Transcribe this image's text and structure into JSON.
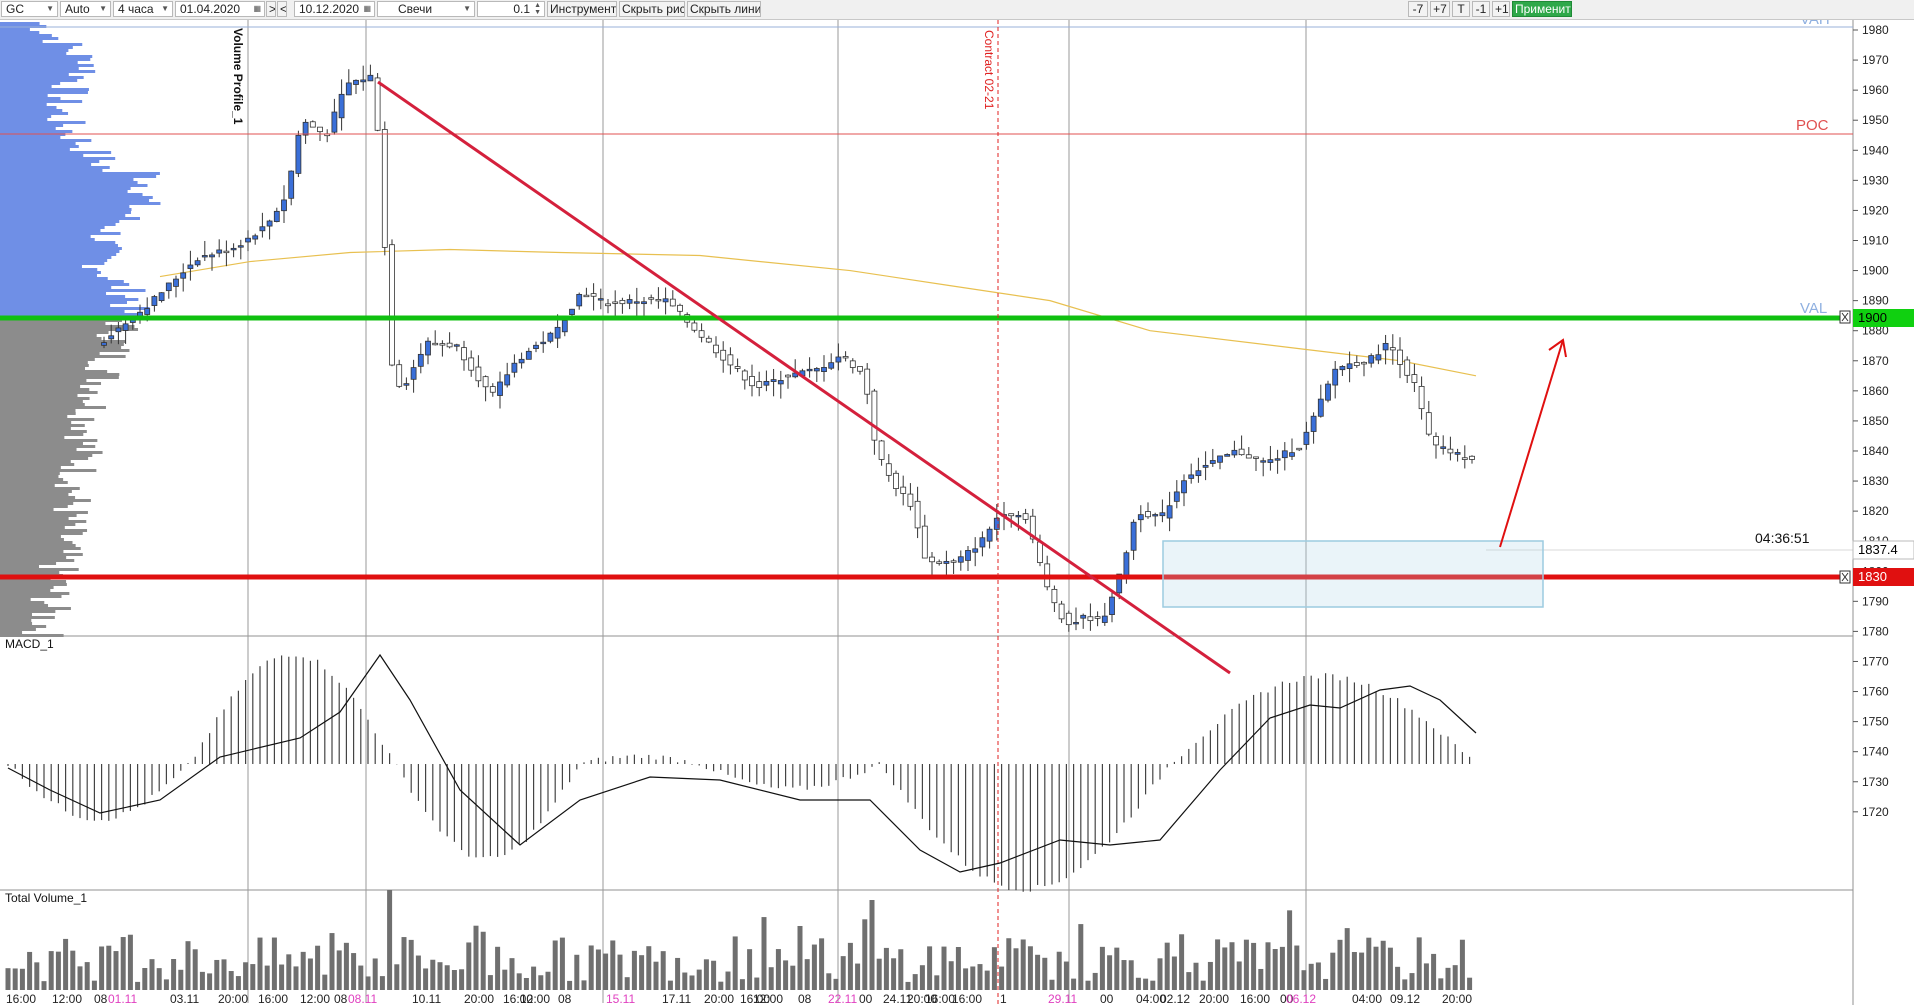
{
  "toolbar": {
    "symbol": "GC",
    "scale": "Auto",
    "timeframe": "4 часа",
    "date_from": "01.04.2020",
    "nav_next": ">",
    "nav_prev": "<",
    "date_to": "10.12.2020",
    "chart_type": "Свечи",
    "step": "0.1",
    "tools_label": "Инструменты",
    "hide_drawings_label": "Скрыть рис.",
    "hide_lines_label": "Скрыть линии",
    "minus7": "-7",
    "plus7": "+7",
    "t_label": "T",
    "minus1": "-1",
    "plus1": "+1",
    "apply_label": "Применить",
    "apply_color": "#2fa84a"
  },
  "chart": {
    "volume_profile_label": "Volume Profile_1",
    "contract_label": "Contract 02-21",
    "poc_label": "POC",
    "val_label": "VAL",
    "vah_label": "VAH",
    "countdown": "04:36:51",
    "last_price": "1837.4",
    "price_levels": [
      "1980",
      "1970",
      "1960",
      "1950",
      "1940",
      "1930",
      "1920",
      "1910",
      "1900",
      "1890",
      "1880",
      "1870",
      "1860",
      "1850",
      "1840",
      "1830",
      "1820",
      "1810",
      "1800",
      "1790",
      "1780",
      "1770",
      "1760",
      "1750",
      "1740",
      "1730",
      "1720"
    ],
    "level_green": "1900",
    "level_red": "1830",
    "macd_label": "MACD_1",
    "volume_label": "Total Volume_1",
    "time_labels": [
      "16:00",
      "12:00",
      "08",
      "01.11",
      "03.11",
      "20:00",
      "16:00",
      "12:00",
      "08",
      "08.11",
      "10.11",
      "20:00",
      "16:00",
      "12:00",
      "08",
      "15.11",
      "17.11",
      "20:00",
      "16:00",
      "12:00",
      "08",
      "22.11",
      "00",
      "24.11",
      "20:00",
      "16:00",
      "16:00",
      "1",
      "29.11",
      "00",
      "04:00",
      "02.12",
      "20:00",
      "16:00",
      "00",
      "06.12",
      "04:00",
      "09.12",
      "20:00"
    ],
    "colors": {
      "bull": "#3a6fd8",
      "bear": "#ffffff",
      "green_line": "#10c010",
      "red_line": "#e01010",
      "trend_line": "#d4203c",
      "date_highlight": "#e040c0"
    }
  }
}
